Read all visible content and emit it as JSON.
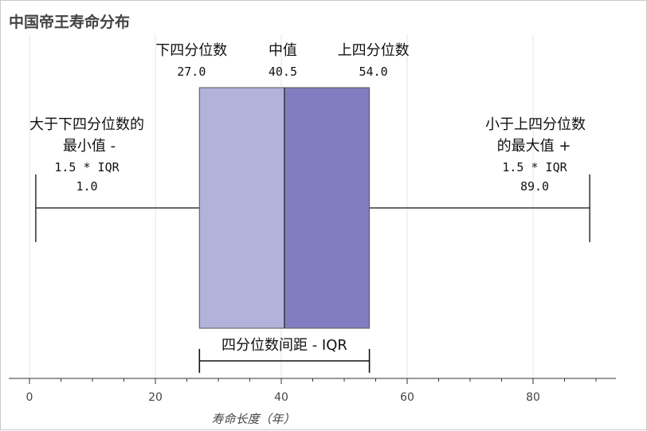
{
  "chart_data": {
    "type": "boxplot",
    "title": "中国帝王寿命分布",
    "xlabel": "寿命长度（年）",
    "ylabel": "",
    "xlim": [
      -3,
      93
    ],
    "x_ticks": [
      0,
      20,
      40,
      60,
      80
    ],
    "minor_tick_step": 5,
    "grid": true,
    "stats": {
      "lower_whisker": 1.0,
      "q1": 27.0,
      "median": 40.5,
      "q3": 54.0,
      "upper_whisker": 89.0
    },
    "colors": {
      "lower_box": "#b3b2da",
      "upper_box": "#807dc0",
      "edge": "#555555",
      "grid": "#e6e6e6"
    },
    "annotations": {
      "q1": {
        "lines": [
          "下四分位数",
          "27.0"
        ]
      },
      "median": {
        "lines": [
          "中值",
          "40.5"
        ]
      },
      "q3": {
        "lines": [
          "上四分位数",
          "54.0"
        ]
      },
      "lower_whisker": {
        "lines": [
          "大于下四分位数的",
          "最小值 -",
          "1.5 * IQR",
          "1.0"
        ]
      },
      "upper_whisker": {
        "lines": [
          "小于上四分位数",
          "的最大值 +",
          "1.5 * IQR",
          "89.0"
        ]
      },
      "iqr": {
        "text": "四分位数间距 - IQR"
      }
    }
  }
}
